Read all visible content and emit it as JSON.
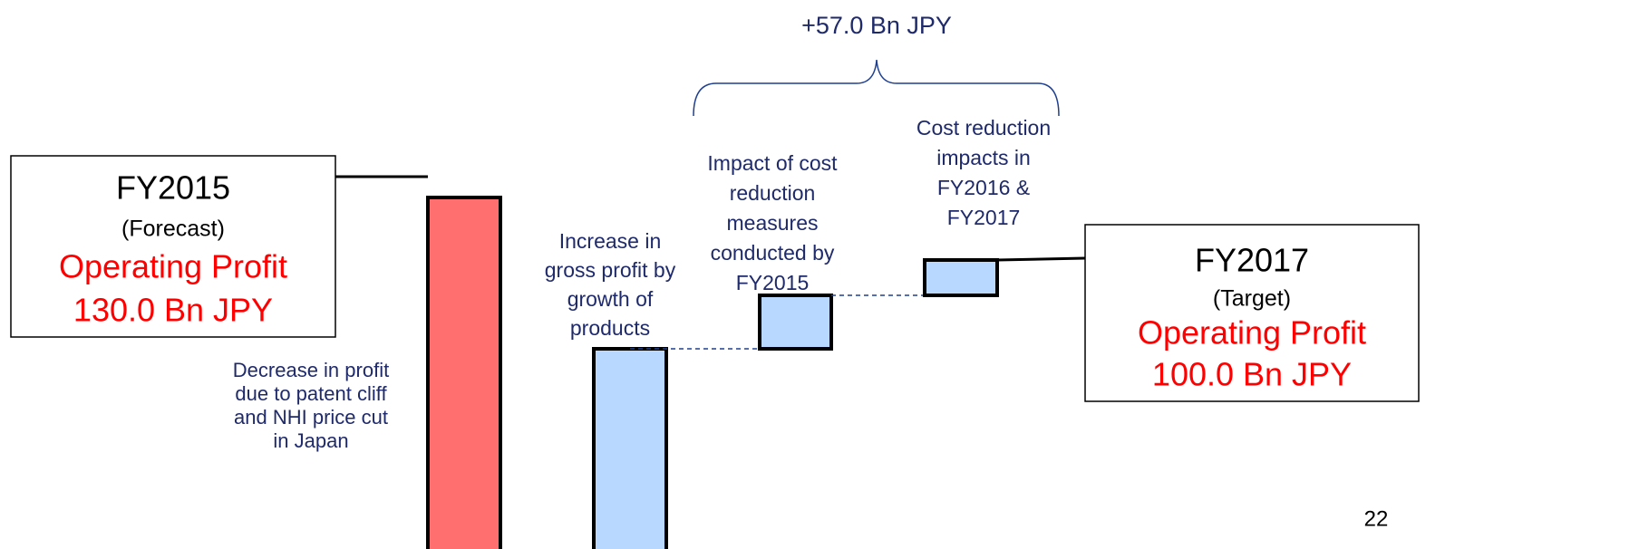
{
  "start_box": {
    "title": "FY2015",
    "subtitle": "(Forecast)",
    "metric": "Operating Profit",
    "value": "130.0 Bn JPY"
  },
  "steps": [
    {
      "label": [
        "Decrease in profit",
        "due to patent cliff",
        "and NHI price cut",
        "in Japan"
      ]
    },
    {
      "label": [
        "Increase in",
        "gross profit by",
        "growth of",
        "products"
      ]
    },
    {
      "label": [
        "Impact of cost",
        "reduction",
        "measures",
        "conducted by",
        "FY2015"
      ]
    },
    {
      "label": [
        "Cost reduction",
        "impacts in",
        "FY2016 &",
        "FY2017"
      ]
    }
  ],
  "bracket_label": "+57.0 Bn JPY",
  "end_box": {
    "title": "FY2017",
    "subtitle": "(Target)",
    "metric": "Operating Profit",
    "value": "100.0 Bn JPY"
  },
  "page_number": "22"
}
